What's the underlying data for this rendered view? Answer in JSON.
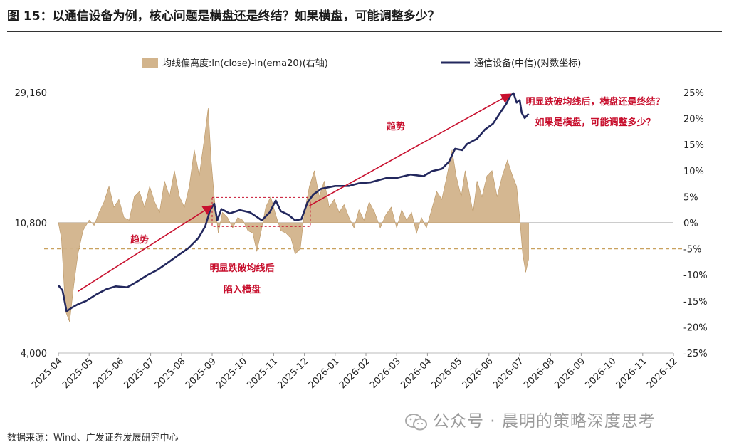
{
  "title": "图 15：以通信设备为例，核心问题是横盘还是终结？如果横盘，可能调整多少？",
  "source": "数据来源：Wind、广发证券发展研究中心",
  "watermark": "公众号 · 晨明的策略深度思考",
  "colors": {
    "area": "#D2B48C",
    "area_edge": "#b8915c",
    "line": "#23285E",
    "arrow": "#C8102E",
    "annotation": "#C8102E",
    "dashed": "#C9A15E"
  },
  "chart_data": {
    "type": "area+line",
    "legend": [
      {
        "name": "均线偏离度:ln(close)-ln(ema20)(右轴)",
        "kind": "area"
      },
      {
        "name": "通信设备(中信)(对数坐标)",
        "kind": "line"
      }
    ],
    "legend_position": "top",
    "left_axis": {
      "scale": "log",
      "ticks": [
        "29,160",
        "10,800",
        "4,000"
      ],
      "tick_values": [
        29160,
        10800,
        4000
      ],
      "ylim": [
        4000,
        29160
      ]
    },
    "right_axis": {
      "ticks": [
        "25%",
        "20%",
        "15%",
        "10%",
        "5%",
        "0%",
        "-5%",
        "-10%",
        "-15%",
        "-20%",
        "-25%"
      ],
      "tick_values": [
        25,
        20,
        15,
        10,
        5,
        0,
        -5,
        -10,
        -15,
        -20,
        -25
      ],
      "ylim": [
        -25,
        25
      ]
    },
    "x_axis": {
      "ticks": [
        "2025-04",
        "2025-05",
        "2025-06",
        "2025-07",
        "2025-08",
        "2025-09",
        "2025-10",
        "2025-11",
        "2025-12",
        "2026-01",
        "2026-02",
        "2026-03",
        "2026-04",
        "2026-05",
        "2026-06",
        "2026-07",
        "2026-08",
        "2026-09",
        "2026-10",
        "2026-11",
        "2026-12"
      ],
      "xlim": [
        "2025-04",
        "2026-12"
      ]
    },
    "reference_line": {
      "axis": "right",
      "value": -5,
      "style": "dashed"
    },
    "series": [
      {
        "name": "通信设备(中信)(对数坐标)",
        "axis": "left",
        "points": [
          [
            "2025-04-01",
            6700
          ],
          [
            "2025-04-05",
            6450
          ],
          [
            "2025-04-09",
            5500
          ],
          [
            "2025-04-14",
            5650
          ],
          [
            "2025-04-20",
            5800
          ],
          [
            "2025-04-28",
            5950
          ],
          [
            "2025-05-08",
            6250
          ],
          [
            "2025-05-18",
            6500
          ],
          [
            "2025-05-28",
            6650
          ],
          [
            "2025-06-08",
            6600
          ],
          [
            "2025-06-18",
            6900
          ],
          [
            "2025-06-28",
            7250
          ],
          [
            "2025-07-08",
            7550
          ],
          [
            "2025-07-18",
            7950
          ],
          [
            "2025-07-28",
            8400
          ],
          [
            "2025-08-08",
            8900
          ],
          [
            "2025-08-18",
            9600
          ],
          [
            "2025-08-25",
            10500
          ],
          [
            "2025-08-30",
            11900
          ],
          [
            "2025-09-03",
            12500
          ],
          [
            "2025-09-06",
            11000
          ],
          [
            "2025-09-10",
            12000
          ],
          [
            "2025-09-18",
            11600
          ],
          [
            "2025-09-28",
            11900
          ],
          [
            "2025-10-08",
            11700
          ],
          [
            "2025-10-15",
            11300
          ],
          [
            "2025-10-20",
            11000
          ],
          [
            "2025-10-28",
            11700
          ],
          [
            "2025-11-03",
            12800
          ],
          [
            "2025-11-08",
            11800
          ],
          [
            "2025-11-15",
            11500
          ],
          [
            "2025-11-22",
            11000
          ],
          [
            "2025-11-28",
            11100
          ],
          [
            "2025-12-04",
            12600
          ],
          [
            "2025-12-10",
            13400
          ],
          [
            "2025-12-18",
            14000
          ],
          [
            "2026-01-01",
            14300
          ],
          [
            "2026-01-15",
            14300
          ],
          [
            "2026-01-25",
            14600
          ],
          [
            "2026-02-05",
            14700
          ],
          [
            "2026-02-20",
            15200
          ],
          [
            "2026-03-01",
            15200
          ],
          [
            "2026-03-15",
            15600
          ],
          [
            "2026-03-28",
            15400
          ],
          [
            "2026-04-05",
            16000
          ],
          [
            "2026-04-15",
            16300
          ],
          [
            "2026-04-22",
            17200
          ],
          [
            "2026-04-28",
            19000
          ],
          [
            "2026-05-05",
            18800
          ],
          [
            "2026-05-10",
            19700
          ],
          [
            "2026-05-20",
            20500
          ],
          [
            "2026-05-28",
            22000
          ],
          [
            "2026-06-05",
            23000
          ],
          [
            "2026-06-12",
            25000
          ],
          [
            "2026-06-18",
            26800
          ],
          [
            "2026-06-22",
            28500
          ],
          [
            "2026-06-25",
            29000
          ],
          [
            "2026-06-28",
            27000
          ],
          [
            "2026-07-01",
            27500
          ],
          [
            "2026-07-03",
            25000
          ],
          [
            "2026-07-06",
            24000
          ],
          [
            "2026-07-10",
            24800
          ]
        ]
      },
      {
        "name": "均线偏离度:ln(close)-ln(ema20)(右轴)",
        "axis": "right",
        "unit": "%",
        "points": [
          [
            "2025-04-01",
            0
          ],
          [
            "2025-04-04",
            -3
          ],
          [
            "2025-04-08",
            -17
          ],
          [
            "2025-04-12",
            -19
          ],
          [
            "2025-04-16",
            -12
          ],
          [
            "2025-04-20",
            -6
          ],
          [
            "2025-04-25",
            -1.5
          ],
          [
            "2025-05-01",
            0.5
          ],
          [
            "2025-05-06",
            -0.5
          ],
          [
            "2025-05-11",
            2
          ],
          [
            "2025-05-16",
            4
          ],
          [
            "2025-05-21",
            7
          ],
          [
            "2025-05-26",
            3
          ],
          [
            "2025-05-31",
            4.5
          ],
          [
            "2025-06-05",
            1
          ],
          [
            "2025-06-10",
            0.5
          ],
          [
            "2025-06-15",
            5
          ],
          [
            "2025-06-20",
            6
          ],
          [
            "2025-06-25",
            3
          ],
          [
            "2025-06-30",
            7
          ],
          [
            "2025-07-05",
            4
          ],
          [
            "2025-07-10",
            2
          ],
          [
            "2025-07-15",
            8
          ],
          [
            "2025-07-20",
            5
          ],
          [
            "2025-07-25",
            10
          ],
          [
            "2025-07-30",
            5
          ],
          [
            "2025-08-04",
            3
          ],
          [
            "2025-08-09",
            7
          ],
          [
            "2025-08-14",
            14
          ],
          [
            "2025-08-19",
            9
          ],
          [
            "2025-08-24",
            16
          ],
          [
            "2025-08-28",
            22
          ],
          [
            "2025-08-31",
            12
          ],
          [
            "2025-09-03",
            5
          ],
          [
            "2025-09-07",
            -2
          ],
          [
            "2025-09-11",
            2
          ],
          [
            "2025-09-16",
            1
          ],
          [
            "2025-09-21",
            -1
          ],
          [
            "2025-09-26",
            1
          ],
          [
            "2025-10-01",
            0.5
          ],
          [
            "2025-10-06",
            -1.5
          ],
          [
            "2025-10-11",
            -2
          ],
          [
            "2025-10-15",
            -5.5
          ],
          [
            "2025-10-19",
            -2
          ],
          [
            "2025-10-24",
            3
          ],
          [
            "2025-10-29",
            5
          ],
          [
            "2025-11-03",
            1.5
          ],
          [
            "2025-11-08",
            -1.5
          ],
          [
            "2025-11-13",
            -2
          ],
          [
            "2025-11-18",
            -3
          ],
          [
            "2025-11-22",
            -6
          ],
          [
            "2025-11-27",
            -5
          ],
          [
            "2025-12-01",
            2
          ],
          [
            "2025-12-06",
            7
          ],
          [
            "2025-12-11",
            10
          ],
          [
            "2025-12-16",
            5
          ],
          [
            "2025-12-21",
            8
          ],
          [
            "2025-12-26",
            3
          ],
          [
            "2025-12-31",
            4.5
          ],
          [
            "2026-01-05",
            2
          ],
          [
            "2026-01-10",
            3.5
          ],
          [
            "2026-01-15",
            1
          ],
          [
            "2026-01-20",
            -1
          ],
          [
            "2026-01-25",
            2.5
          ],
          [
            "2026-01-30",
            0.5
          ],
          [
            "2026-02-04",
            4
          ],
          [
            "2026-02-09",
            2
          ],
          [
            "2026-02-14",
            -1
          ],
          [
            "2026-02-19",
            1.5
          ],
          [
            "2026-02-24",
            3
          ],
          [
            "2026-03-01",
            -1
          ],
          [
            "2026-03-06",
            2.5
          ],
          [
            "2026-03-11",
            0.5
          ],
          [
            "2026-03-16",
            2
          ],
          [
            "2026-03-21",
            -2
          ],
          [
            "2026-03-26",
            1
          ],
          [
            "2026-03-31",
            -1
          ],
          [
            "2026-04-05",
            2.5
          ],
          [
            "2026-04-10",
            6
          ],
          [
            "2026-04-15",
            4.5
          ],
          [
            "2026-04-20",
            9
          ],
          [
            "2026-04-25",
            14
          ],
          [
            "2026-04-29",
            9
          ],
          [
            "2026-05-04",
            5
          ],
          [
            "2026-05-08",
            10
          ],
          [
            "2026-05-12",
            6
          ],
          [
            "2026-05-16",
            2
          ],
          [
            "2026-05-20",
            8
          ],
          [
            "2026-05-25",
            5
          ],
          [
            "2026-05-30",
            9
          ],
          [
            "2026-06-04",
            10
          ],
          [
            "2026-06-09",
            5
          ],
          [
            "2026-06-14",
            9
          ],
          [
            "2026-06-19",
            12
          ],
          [
            "2026-06-24",
            9
          ],
          [
            "2026-06-28",
            7
          ],
          [
            "2026-07-01",
            1
          ],
          [
            "2026-07-04",
            -6
          ],
          [
            "2026-07-07",
            -9.5
          ],
          [
            "2026-07-10",
            -7
          ]
        ]
      }
    ],
    "annotations": [
      {
        "text": "趋势",
        "near": "2025-05"
      },
      {
        "text": "明显跌破均线后",
        "near": "2025-09"
      },
      {
        "text": "陷入横盘",
        "near": "2025-09"
      },
      {
        "text": "趋势",
        "near": "2026-02"
      },
      {
        "text": "明显跌破均线后，横盘还是终结？",
        "near": "2026-08"
      },
      {
        "text": "如果是横盘，可能调整多少？",
        "near": "2026-08"
      }
    ]
  }
}
